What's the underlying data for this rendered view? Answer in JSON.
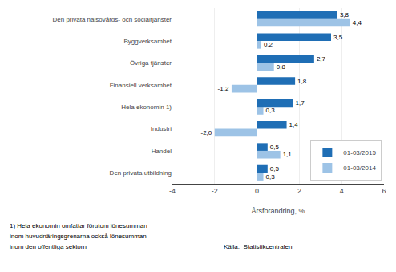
{
  "chart_data": {
    "type": "bar",
    "orientation": "horizontal",
    "categories": [
      "Den privata utbildning",
      "Handel",
      "Industri",
      "Hela ekonomin 1)",
      "Finansiell verksamhet",
      "Övriga tjänster",
      "Byggverksamhet",
      "Den privata hälsovårds- och socialtjänster"
    ],
    "series": [
      {
        "name": "01-03/2015",
        "color": "#1F6EB5",
        "values": [
          0.5,
          0.5,
          1.4,
          1.7,
          1.8,
          2.7,
          3.5,
          3.8
        ],
        "value_labels": [
          "0,5",
          "0,5",
          "1,4",
          "1,7",
          "1,8",
          "2,7",
          "3,5",
          "3,8"
        ]
      },
      {
        "name": "01-03/2014",
        "color": "#9DC3E6",
        "values": [
          0.3,
          1.1,
          -2.0,
          0.3,
          -1.2,
          0.8,
          0.2,
          4.4
        ],
        "value_labels": [
          "0,3",
          "1,1",
          "-2,0",
          "0,3",
          "-1,2",
          "0,8",
          "0,2",
          "4,4"
        ]
      }
    ],
    "xlabel": "Årsförändring, %",
    "xlim": [
      -4,
      6
    ],
    "xticks": [
      -4,
      -2,
      0,
      2,
      4,
      6
    ],
    "grid": true,
    "legend": "lower right",
    "data_labels": true,
    "annotations": [
      "1) Hela ekonomin omfattar förutom lönesumman",
      "inom huvudnäringsgrenarna också lönesumman",
      "inom den offentliga sektorn",
      "Källa:  Statistikcentralen"
    ]
  }
}
